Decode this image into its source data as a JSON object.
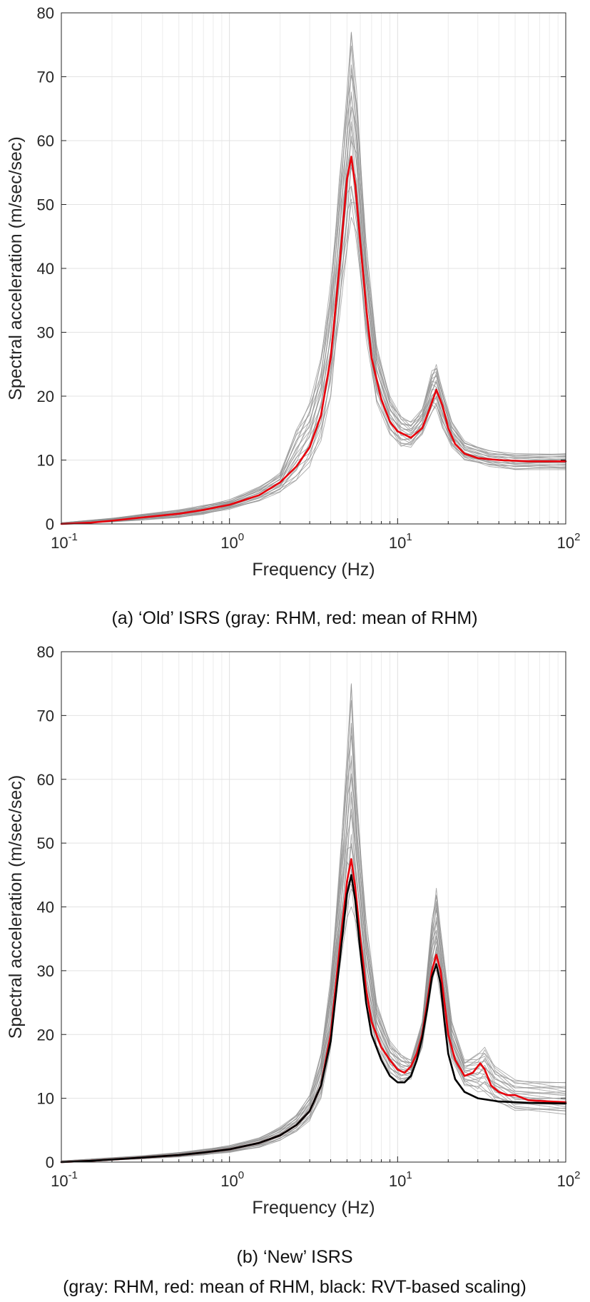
{
  "chart_data": [
    {
      "type": "line",
      "caption": "(a) ‘Old’ ISRS (gray: RHM, red: mean of RHM)",
      "xlabel": "Frequency (Hz)",
      "ylabel": "Spectral acceleration (m/sec/sec)",
      "xscale": "log",
      "xlim": [
        0.1,
        100
      ],
      "ylim": [
        0,
        80
      ],
      "yticks": [
        0,
        10,
        20,
        30,
        40,
        50,
        60,
        70,
        80
      ],
      "xticks": [
        {
          "base": "10",
          "exp": "-1"
        },
        {
          "base": "10",
          "exp": "0"
        },
        {
          "base": "10",
          "exp": "1"
        },
        {
          "base": "10",
          "exp": "2"
        }
      ],
      "grid": true,
      "gray_envelope": {
        "x": [
          0.1,
          0.2,
          0.3,
          0.5,
          0.7,
          1.0,
          1.5,
          2.0,
          2.5,
          3.0,
          3.5,
          4.0,
          4.5,
          5.0,
          5.3,
          5.7,
          6.5,
          7.5,
          9.0,
          10.5,
          12.0,
          14.0,
          16.0,
          17.0,
          18.5,
          21.0,
          25.0,
          35.0,
          50.0,
          100.0
        ],
        "lower": [
          0.0,
          0.3,
          0.6,
          1.0,
          1.5,
          2.3,
          3.6,
          5.0,
          6.5,
          9.0,
          13.0,
          20.0,
          32.0,
          43.0,
          48.0,
          44.0,
          29.0,
          19.0,
          14.0,
          12.0,
          12.0,
          14.0,
          17.5,
          18.0,
          15.0,
          12.0,
          10.0,
          9.0,
          8.5,
          8.5
        ],
        "upper": [
          0.2,
          0.9,
          1.5,
          2.2,
          2.9,
          3.8,
          5.8,
          8.0,
          15.0,
          19.0,
          26.0,
          38.0,
          54.0,
          68.0,
          77.0,
          68.0,
          44.0,
          28.0,
          20.0,
          17.0,
          16.0,
          18.0,
          24.0,
          25.0,
          21.0,
          16.0,
          13.0,
          11.5,
          11.0,
          11.0
        ]
      },
      "series": [
        {
          "name": "mean of RHM",
          "color": "#e8000b",
          "x": [
            0.1,
            0.15,
            0.2,
            0.3,
            0.5,
            0.7,
            1.0,
            1.5,
            2.0,
            2.5,
            3.0,
            3.5,
            4.0,
            4.5,
            5.0,
            5.3,
            5.6,
            6.0,
            6.5,
            7.0,
            8.0,
            9.0,
            10.0,
            12.0,
            14.0,
            15.5,
            17.0,
            18.5,
            20.0,
            22.0,
            25.0,
            30.0,
            40.0,
            60.0,
            100.0
          ],
          "y": [
            0.0,
            0.2,
            0.5,
            1.0,
            1.6,
            2.2,
            3.0,
            4.5,
            6.5,
            9.0,
            12.0,
            17.0,
            26.0,
            40.0,
            54.0,
            57.5,
            53.0,
            44.0,
            34.0,
            26.0,
            19.5,
            16.0,
            14.5,
            13.5,
            15.0,
            18.0,
            21.0,
            18.5,
            15.0,
            12.5,
            11.0,
            10.3,
            10.0,
            9.8,
            9.8
          ]
        }
      ]
    },
    {
      "type": "line",
      "caption_line1": "(b) ‘New’ ISRS",
      "caption_line2": "(gray: RHM, red: mean of RHM, black: RVT-based scaling)",
      "xlabel": "Frequency (Hz)",
      "ylabel": "Spectral acceleration (m/sec/sec)",
      "xscale": "log",
      "xlim": [
        0.1,
        100
      ],
      "ylim": [
        0,
        80
      ],
      "yticks": [
        0,
        10,
        20,
        30,
        40,
        50,
        60,
        70,
        80
      ],
      "xticks": [
        {
          "base": "10",
          "exp": "-1"
        },
        {
          "base": "10",
          "exp": "0"
        },
        {
          "base": "10",
          "exp": "1"
        },
        {
          "base": "10",
          "exp": "2"
        }
      ],
      "grid": true,
      "gray_envelope": {
        "x": [
          0.1,
          0.2,
          0.3,
          0.5,
          0.7,
          1.0,
          1.5,
          2.0,
          2.5,
          3.0,
          3.5,
          4.0,
          4.5,
          5.0,
          5.3,
          5.7,
          6.5,
          7.5,
          9.0,
          10.5,
          12.0,
          14.0,
          16.0,
          17.0,
          18.5,
          21.0,
          25.0,
          30.0,
          33.0,
          38.0,
          50.0,
          100.0
        ],
        "lower": [
          0.0,
          0.3,
          0.5,
          0.8,
          1.1,
          1.5,
          2.3,
          3.4,
          4.7,
          6.5,
          10.0,
          18.0,
          30.0,
          38.0,
          40.0,
          36.0,
          25.0,
          18.0,
          14.0,
          12.5,
          13.0,
          18.0,
          28.0,
          30.0,
          24.0,
          16.0,
          12.0,
          11.0,
          11.0,
          9.5,
          8.0,
          7.5
        ],
        "upper": [
          0.2,
          0.7,
          1.0,
          1.5,
          2.0,
          2.6,
          3.8,
          5.5,
          7.5,
          10.5,
          17.0,
          29.0,
          46.0,
          64.0,
          75.0,
          58.0,
          38.0,
          25.0,
          19.0,
          17.0,
          16.0,
          22.0,
          38.0,
          43.0,
          34.0,
          22.0,
          16.0,
          17.0,
          18.0,
          15.0,
          13.0,
          12.5
        ]
      },
      "series": [
        {
          "name": "mean of RHM",
          "color": "#e8000b",
          "x": [
            0.1,
            0.15,
            0.2,
            0.3,
            0.5,
            0.7,
            1.0,
            1.5,
            2.0,
            2.5,
            3.0,
            3.5,
            4.0,
            4.5,
            5.0,
            5.3,
            5.6,
            6.0,
            6.5,
            7.0,
            8.0,
            9.0,
            10.0,
            11.0,
            12.0,
            13.0,
            14.0,
            15.0,
            16.0,
            17.0,
            18.0,
            19.0,
            20.0,
            22.0,
            25.0,
            28.0,
            31.0,
            33.0,
            36.0,
            40.0,
            45.0,
            50.0,
            60.0,
            80.0,
            100.0
          ],
          "y": [
            0.0,
            0.2,
            0.4,
            0.7,
            1.1,
            1.5,
            2.0,
            3.0,
            4.2,
            5.8,
            8.0,
            12.0,
            20.0,
            33.0,
            44.0,
            47.5,
            43.0,
            35.0,
            27.0,
            22.0,
            18.0,
            16.0,
            14.5,
            14.0,
            15.0,
            17.0,
            20.0,
            25.0,
            30.0,
            32.5,
            30.0,
            25.0,
            20.0,
            16.0,
            13.5,
            14.0,
            15.5,
            14.5,
            12.0,
            11.0,
            10.5,
            10.5,
            9.7,
            9.5,
            9.4
          ]
        },
        {
          "name": "RVT-based scaling",
          "color": "#000000",
          "x": [
            0.1,
            0.15,
            0.2,
            0.3,
            0.5,
            0.7,
            1.0,
            1.5,
            2.0,
            2.5,
            3.0,
            3.5,
            4.0,
            4.5,
            5.0,
            5.3,
            5.6,
            6.0,
            6.5,
            7.0,
            8.0,
            9.0,
            10.0,
            11.0,
            12.0,
            13.0,
            14.0,
            15.0,
            16.0,
            17.0,
            18.0,
            19.0,
            20.0,
            22.0,
            25.0,
            30.0,
            40.0,
            60.0,
            100.0
          ],
          "y": [
            0.0,
            0.2,
            0.4,
            0.7,
            1.1,
            1.5,
            2.0,
            3.0,
            4.2,
            5.8,
            8.0,
            12.0,
            19.0,
            31.0,
            42.0,
            45.0,
            41.0,
            33.0,
            25.0,
            20.0,
            16.0,
            13.5,
            12.5,
            12.5,
            13.5,
            16.0,
            19.5,
            24.0,
            29.0,
            31.0,
            28.0,
            22.0,
            17.0,
            13.0,
            11.0,
            10.0,
            9.5,
            9.3,
            9.2
          ]
        }
      ]
    }
  ]
}
